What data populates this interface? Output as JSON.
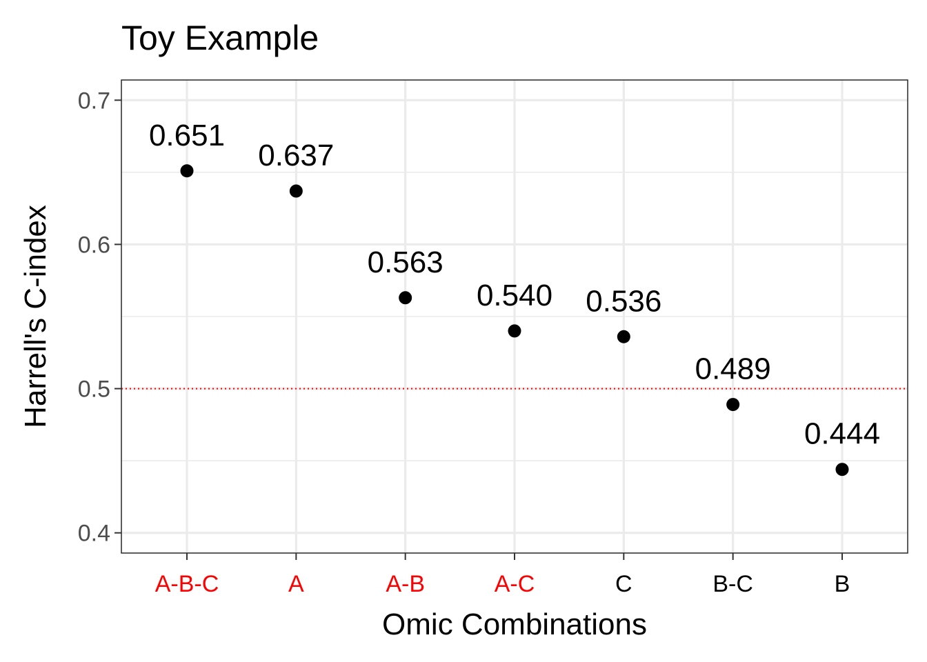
{
  "chart_data": {
    "type": "scatter",
    "title": "Toy Example",
    "xlabel": "Omic Combinations",
    "ylabel": "Harrell's C-index",
    "categories": [
      "A-B-C",
      "A",
      "A-B",
      "A-C",
      "C",
      "B-C",
      "B"
    ],
    "values": [
      0.651,
      0.637,
      0.563,
      0.54,
      0.536,
      0.489,
      0.444
    ],
    "data_labels": [
      "0.651",
      "0.637",
      "0.563",
      "0.540",
      "0.536",
      "0.489",
      "0.444"
    ],
    "category_colors": [
      "#ff0000",
      "#ff0000",
      "#ff0000",
      "#ff0000",
      "#000000",
      "#000000",
      "#000000"
    ],
    "yticks": [
      0.4,
      0.5,
      0.6,
      0.7
    ],
    "ytick_labels": [
      "0.4",
      "0.5",
      "0.6",
      "0.7"
    ],
    "ylim": [
      0.386,
      0.714
    ],
    "reference_line": {
      "y": 0.5,
      "color": "#ff0000",
      "style": "dotted"
    },
    "point_color": "#000000",
    "grid": true,
    "theme": "bw"
  }
}
